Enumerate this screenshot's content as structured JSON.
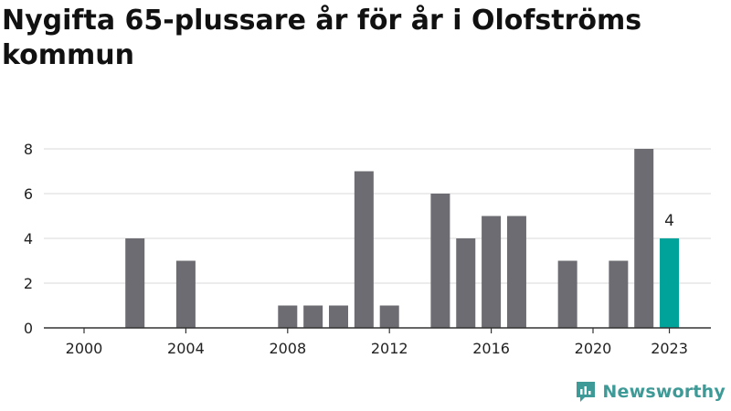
{
  "title": "Nygifta 65-plussare år för år i Olofströms kommun",
  "brand": {
    "name": "Newsworthy",
    "icon": "newsworthy-logo-icon",
    "color": "#3e9a97"
  },
  "colors": {
    "bar": "#6d6c72",
    "highlight": "#00a39a",
    "grid": "#d9d9d9",
    "axis": "#333333"
  },
  "chart_data": {
    "type": "bar",
    "title": "Nygifta 65-plussare år för år i Olofströms kommun",
    "xlabel": "",
    "ylabel": "",
    "x": [
      2000,
      2001,
      2002,
      2003,
      2004,
      2005,
      2006,
      2007,
      2008,
      2009,
      2010,
      2011,
      2012,
      2013,
      2014,
      2015,
      2016,
      2017,
      2018,
      2019,
      2020,
      2021,
      2022,
      2023
    ],
    "values": [
      0,
      0,
      4,
      0,
      3,
      0,
      0,
      0,
      1,
      1,
      1,
      7,
      1,
      0,
      6,
      4,
      5,
      5,
      0,
      3,
      0,
      3,
      8,
      4
    ],
    "highlight": 2023,
    "data_labels": [
      {
        "x": 2023,
        "label": "4"
      }
    ],
    "xticks": [
      2000,
      2004,
      2008,
      2012,
      2016,
      2020,
      2023
    ],
    "yticks": [
      0,
      2,
      4,
      6,
      8
    ],
    "ylim": [
      0,
      8
    ],
    "grid": true,
    "legend": "none"
  }
}
